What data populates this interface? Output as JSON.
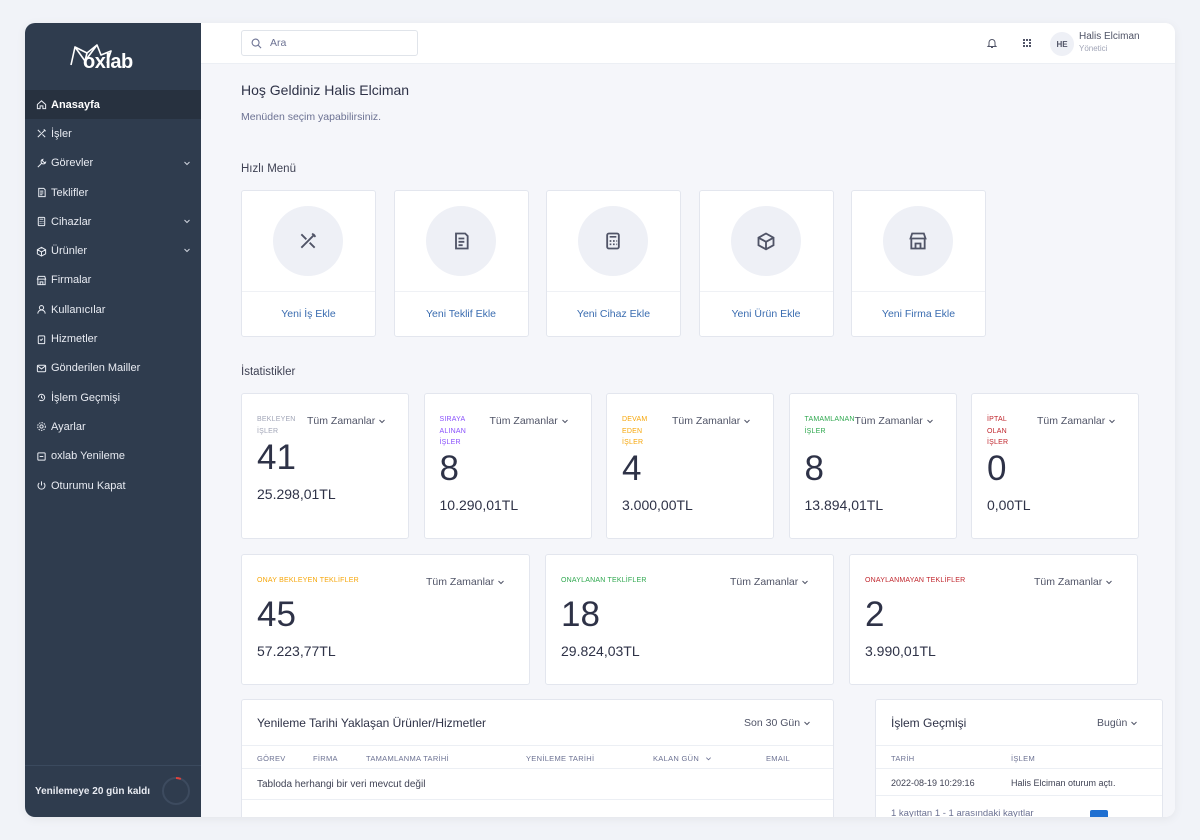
{
  "brand": {
    "logo_text": "oxlab"
  },
  "sidebar": {
    "items": [
      {
        "label": "Anasayfa",
        "icon": "home-icon",
        "active": true
      },
      {
        "label": "İşler",
        "icon": "tools-icon"
      },
      {
        "label": "Görevler",
        "icon": "wrench-icon",
        "has_children": true
      },
      {
        "label": "Teklifler",
        "icon": "document-icon"
      },
      {
        "label": "Cihazlar",
        "icon": "calculator-icon",
        "has_children": true
      },
      {
        "label": "Ürünler",
        "icon": "box-icon",
        "has_children": true
      },
      {
        "label": "Firmalar",
        "icon": "store-icon"
      },
      {
        "label": "Kullanıcılar",
        "icon": "user-icon"
      },
      {
        "label": "Hizmetler",
        "icon": "clipboard-icon"
      },
      {
        "label": "Gönderilen Mailler",
        "icon": "mail-icon"
      },
      {
        "label": "İşlem Geçmişi",
        "icon": "history-icon"
      },
      {
        "label": "Ayarlar",
        "icon": "gear-icon"
      },
      {
        "label": "oxlab Yenileme",
        "icon": "renew-icon"
      },
      {
        "label": "Oturumu Kapat",
        "icon": "power-icon"
      }
    ],
    "renewal_text": "Yenilemeye 20 gün kaldı",
    "renewal_progress": 0.06
  },
  "topbar": {
    "search_placeholder": "Ara",
    "user": {
      "initials": "HE",
      "name": "Halis Elciman",
      "role": "Yönetici"
    }
  },
  "welcome": {
    "title": "Hoş Geldiniz Halis Elciman",
    "subtitle": "Menüden seçim yapabilirsiniz."
  },
  "quick_menu": {
    "title": "Hızlı Menü",
    "items": [
      {
        "label": "Yeni İş Ekle",
        "icon": "tools-icon"
      },
      {
        "label": "Yeni Teklif Ekle",
        "icon": "document-icon"
      },
      {
        "label": "Yeni Cihaz Ekle",
        "icon": "calculator-icon"
      },
      {
        "label": "Yeni Ürün Ekle",
        "icon": "box-icon"
      },
      {
        "label": "Yeni Firma Ekle",
        "icon": "store-icon"
      }
    ]
  },
  "stats": {
    "title": "İstatistikler",
    "row1": [
      {
        "label": "BEKLEYEN İŞLER",
        "filter": "Tüm Zamanlar",
        "count": "41",
        "amount": "25.298,01TL",
        "color": "#a1a5b7"
      },
      {
        "label": "SIRAYA ALINAN İŞLER",
        "filter": "Tüm Zamanlar",
        "count": "8",
        "amount": "10.290,01TL",
        "color": "#8950fc"
      },
      {
        "label": "DEVAM EDEN İŞLER",
        "filter": "Tüm Zamanlar",
        "count": "4",
        "amount": "3.000,00TL",
        "color": "#f6a609"
      },
      {
        "label": "TAMAMLANAN İŞLER",
        "filter": "Tüm Zamanlar",
        "count": "8",
        "amount": "13.894,01TL",
        "color": "#2fa84f"
      },
      {
        "label": "İPTAL OLAN İŞLER",
        "filter": "Tüm Zamanlar",
        "count": "0",
        "amount": "0,00TL",
        "color": "#c0262d"
      }
    ],
    "row2": [
      {
        "label": "ONAY BEKLEYEN TEKLİFLER",
        "filter": "Tüm Zamanlar",
        "count": "45",
        "amount": "57.223,77TL",
        "color": "#f6a609"
      },
      {
        "label": "ONAYLANAN TEKLİFLER",
        "filter": "Tüm Zamanlar",
        "count": "18",
        "amount": "29.824,03TL",
        "color": "#2fa84f"
      },
      {
        "label": "ONAYLANMAYAN TEKLİFLER",
        "filter": "Tüm Zamanlar",
        "count": "2",
        "amount": "3.990,01TL",
        "color": "#c0262d"
      }
    ]
  },
  "renewals": {
    "title": "Yenileme Tarihi Yaklaşan Ürünler/Hizmetler",
    "filter": "Son 30 Gün",
    "columns": [
      "GÖREV",
      "FİRMA",
      "TAMAMLANMA TARİHİ",
      "YENİLEME TARİHİ",
      "KALAN GÜN",
      "EMAIL"
    ],
    "empty_text": "Tabloda herhangi bir veri mevcut değil"
  },
  "history": {
    "title": "İşlem Geçmişi",
    "filter": "Bugün",
    "columns": [
      "TARİH",
      "İŞLEM"
    ],
    "rows": [
      {
        "date": "2022-08-19 10:29:16",
        "action": "Halis Elciman oturum açtı."
      }
    ],
    "footer": "1 kayıttan 1 - 1 arasındaki kayıtlar"
  },
  "colors": {
    "sidebar_bg": "#2f3c4e",
    "link": "#3a6cb0",
    "accent": "#1f6fd1"
  }
}
